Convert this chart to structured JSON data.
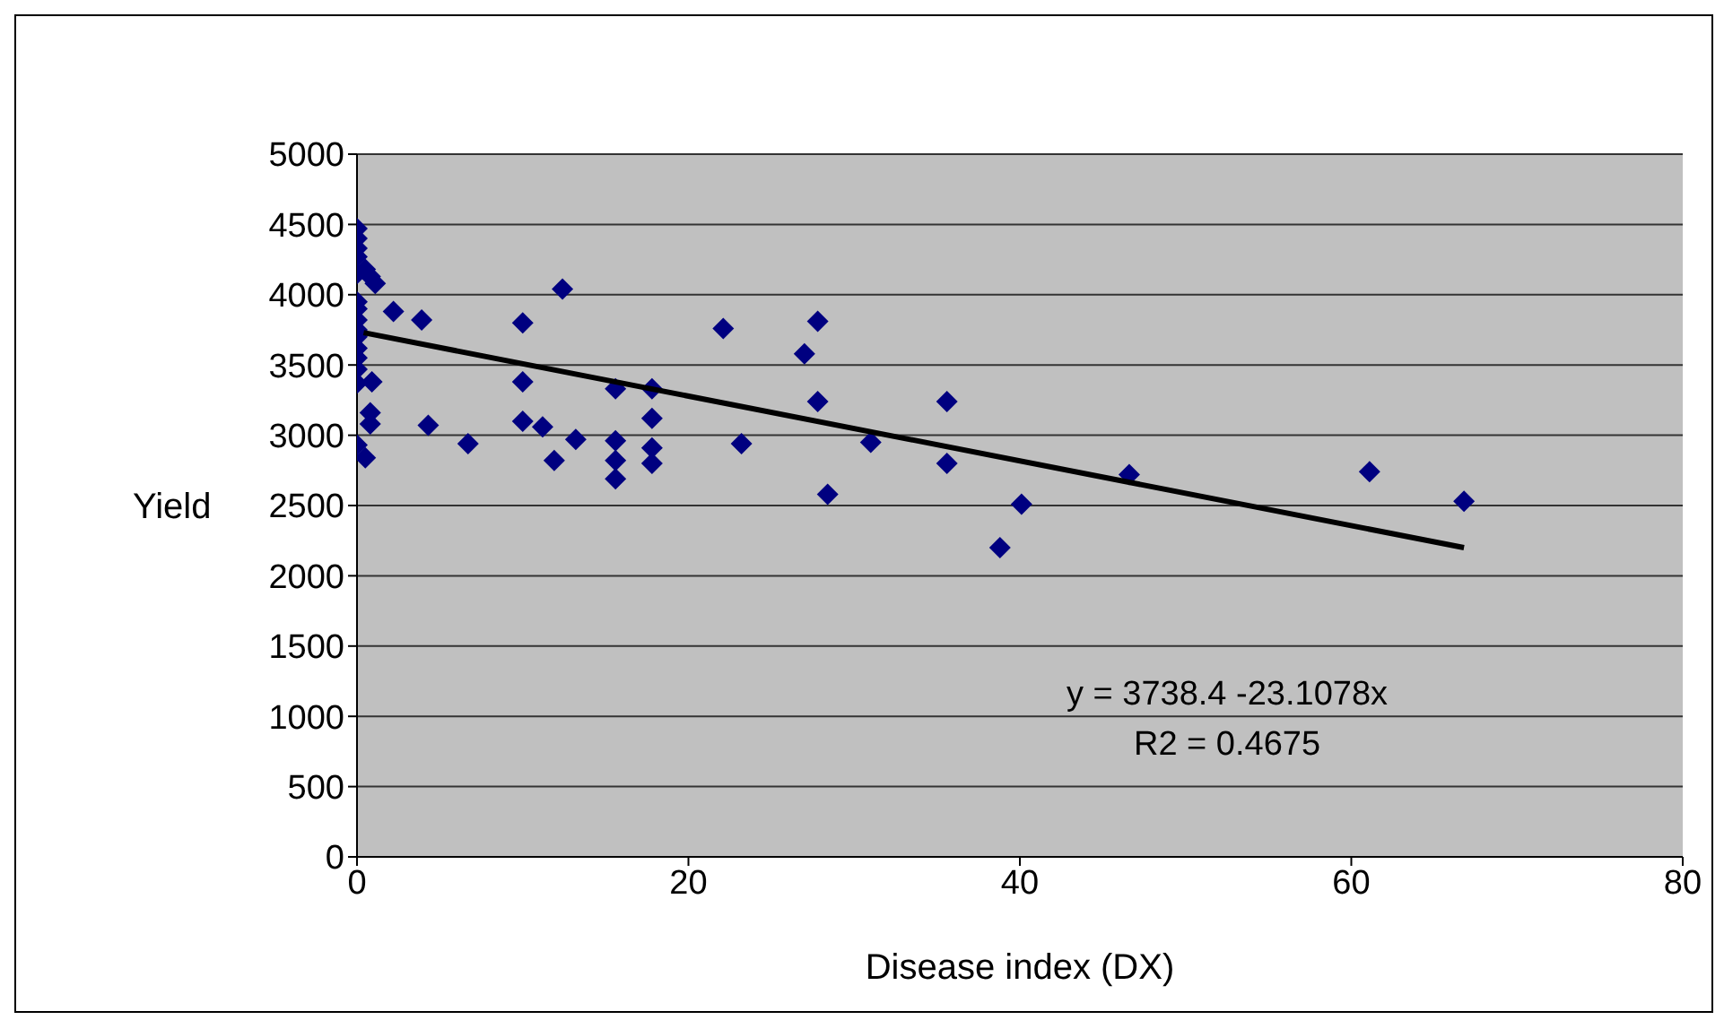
{
  "chart_data": {
    "type": "scatter",
    "xlabel": "Disease index (DX)",
    "ylabel": "Yield",
    "xlim": [
      0,
      80
    ],
    "xticks": [
      0,
      20,
      40,
      60,
      80
    ],
    "ylim": [
      0,
      5000
    ],
    "yticks": [
      0,
      500,
      1000,
      1500,
      2000,
      2500,
      3000,
      3500,
      4000,
      4500,
      5000
    ],
    "grid": "y",
    "marker": "diamond",
    "annotations": [
      "y = 3738.4 -23.1078x",
      "R2 = 0.4675"
    ],
    "series": [
      {
        "type": "scatter",
        "color": "#000080",
        "x": [
          0,
          0,
          0,
          0,
          0,
          0,
          0,
          0,
          0,
          0,
          0,
          0,
          0,
          0,
          0,
          0.5,
          0.8,
          1.1,
          0.9,
          0.8,
          0.8,
          0.5,
          2.2,
          3.9,
          4.3,
          6.7,
          10,
          10,
          10,
          11.2,
          12.4,
          11.9,
          13.2,
          15.6,
          15.6,
          15.6,
          15.6,
          17.8,
          17.8,
          17.8,
          17.8,
          22.1,
          23.2,
          27,
          27.8,
          27.8,
          28.4,
          31,
          35.6,
          35.6,
          38.8,
          40.1,
          46.6,
          61.1,
          66.8
        ],
        "values": [
          4470,
          4400,
          4330,
          4270,
          4150,
          3950,
          3900,
          3820,
          3750,
          3700,
          3620,
          3550,
          3470,
          3370,
          2930,
          4180,
          4130,
          4080,
          3380,
          3160,
          3080,
          2840,
          3880,
          3820,
          3070,
          2940,
          3800,
          3380,
          3100,
          3060,
          4040,
          2820,
          2970,
          3330,
          2960,
          2820,
          2690,
          3330,
          3120,
          2910,
          2800,
          3760,
          2940,
          3580,
          3810,
          3240,
          2580,
          2950,
          3240,
          2800,
          2200,
          2510,
          2720,
          2740,
          2530
        ]
      },
      {
        "type": "line",
        "color": "#000000",
        "marker": "none",
        "x": [
          0.4,
          66.8
        ],
        "values": [
          3730,
          2200
        ]
      }
    ]
  }
}
